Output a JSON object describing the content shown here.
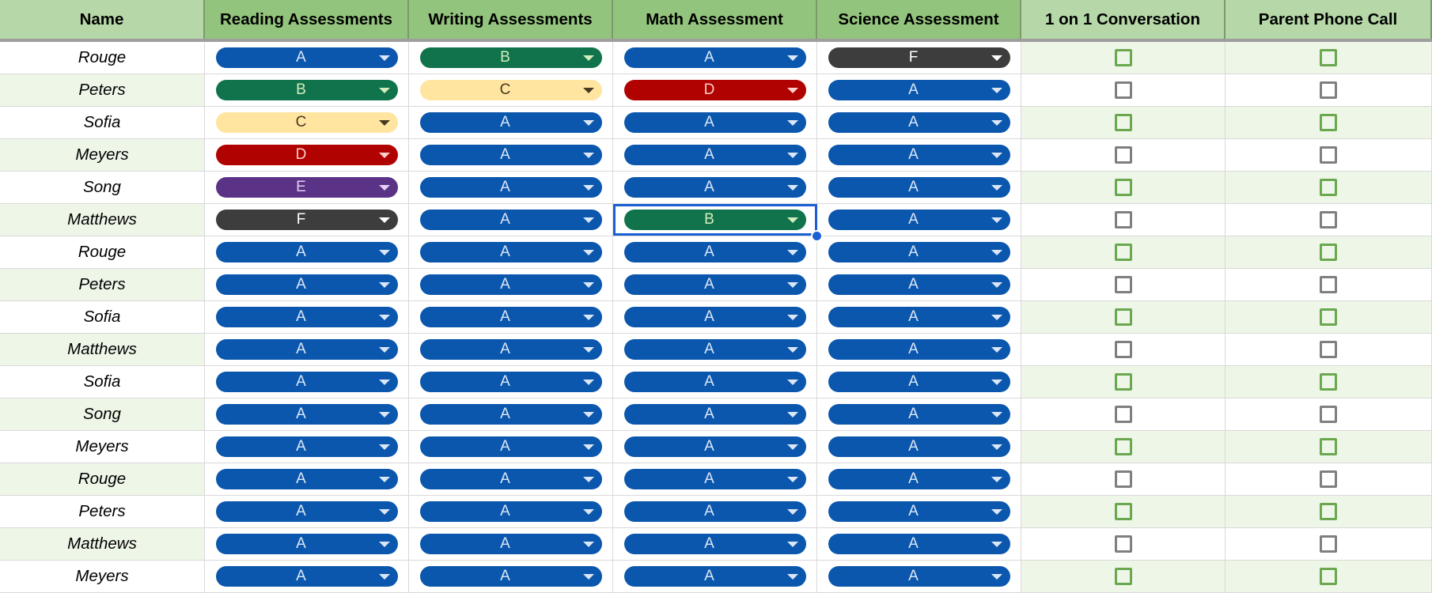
{
  "columns": [
    "Name",
    "Reading Assessments",
    "Writing Assessments",
    "Math Assessment",
    "Science Assessment",
    "1 on 1 Conversation",
    "Parent Phone Call"
  ],
  "grade_styles": {
    "A": {
      "bg": "#0b57ad",
      "fg": "#dbe7f7"
    },
    "B": {
      "bg": "#11734b",
      "fg": "#d4edbc"
    },
    "C": {
      "bg": "#ffe5a0",
      "fg": "#473821"
    },
    "D": {
      "bg": "#b10202",
      "fg": "#ffcfc9"
    },
    "E": {
      "bg": "#5a3286",
      "fg": "#e5cff2"
    },
    "F": {
      "bg": "#3d3d3d",
      "fg": "#ffffff"
    }
  },
  "checkbox_colors": {
    "green": "#6aa84f",
    "gray": "#7f7f7f"
  },
  "selected_cell": {
    "row": 5,
    "col": 3
  },
  "rows": [
    {
      "name": "Rouge",
      "grades": [
        "A",
        "B",
        "A",
        "F"
      ],
      "checked": [
        false,
        false
      ]
    },
    {
      "name": "Peters",
      "grades": [
        "B",
        "C",
        "D",
        "A"
      ],
      "checked": [
        false,
        false
      ]
    },
    {
      "name": "Sofia",
      "grades": [
        "C",
        "A",
        "A",
        "A"
      ],
      "checked": [
        false,
        false
      ]
    },
    {
      "name": "Meyers",
      "grades": [
        "D",
        "A",
        "A",
        "A"
      ],
      "checked": [
        false,
        false
      ]
    },
    {
      "name": "Song",
      "grades": [
        "E",
        "A",
        "A",
        "A"
      ],
      "checked": [
        false,
        false
      ]
    },
    {
      "name": "Matthews",
      "grades": [
        "F",
        "A",
        "B",
        "A"
      ],
      "checked": [
        false,
        false
      ]
    },
    {
      "name": "Rouge",
      "grades": [
        "A",
        "A",
        "A",
        "A"
      ],
      "checked": [
        false,
        false
      ]
    },
    {
      "name": "Peters",
      "grades": [
        "A",
        "A",
        "A",
        "A"
      ],
      "checked": [
        false,
        false
      ]
    },
    {
      "name": "Sofia",
      "grades": [
        "A",
        "A",
        "A",
        "A"
      ],
      "checked": [
        false,
        false
      ]
    },
    {
      "name": "Matthews",
      "grades": [
        "A",
        "A",
        "A",
        "A"
      ],
      "checked": [
        false,
        false
      ]
    },
    {
      "name": "Sofia",
      "grades": [
        "A",
        "A",
        "A",
        "A"
      ],
      "checked": [
        false,
        false
      ]
    },
    {
      "name": "Song",
      "grades": [
        "A",
        "A",
        "A",
        "A"
      ],
      "checked": [
        false,
        false
      ]
    },
    {
      "name": "Meyers",
      "grades": [
        "A",
        "A",
        "A",
        "A"
      ],
      "checked": [
        false,
        false
      ]
    },
    {
      "name": "Rouge",
      "grades": [
        "A",
        "A",
        "A",
        "A"
      ],
      "checked": [
        false,
        false
      ]
    },
    {
      "name": "Peters",
      "grades": [
        "A",
        "A",
        "A",
        "A"
      ],
      "checked": [
        false,
        false
      ]
    },
    {
      "name": "Matthews",
      "grades": [
        "A",
        "A",
        "A",
        "A"
      ],
      "checked": [
        false,
        false
      ]
    },
    {
      "name": "Meyers",
      "grades": [
        "A",
        "A",
        "A",
        "A"
      ],
      "checked": [
        false,
        false
      ]
    }
  ]
}
